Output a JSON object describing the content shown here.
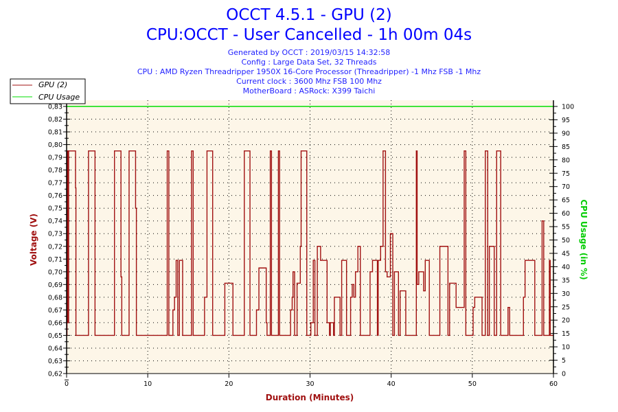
{
  "header": {
    "title": "OCCT 4.5.1 - GPU (2)",
    "subtitle": "CPU:OCCT - User Cancelled - 1h 00m 04s",
    "info": [
      "Generated by OCCT : 2019/03/15 14:32:58",
      "Config : Large Data Set, 32 Threads",
      "CPU : AMD Ryzen Threadripper 1950X 16-Core Processor (Threadripper) -1 Mhz FSB -1 Mhz",
      "Current clock : 3600 Mhz FSB 100 Mhz",
      "MotherBoard : ASRock: X399 Taichi"
    ]
  },
  "chart_data": {
    "type": "line",
    "xlabel": "Duration (Minutes)",
    "ylabel": "Voltage (V)",
    "y2label": "CPU Usage (in %)",
    "xlim": [
      0,
      60
    ],
    "ylim": [
      0.62,
      0.83
    ],
    "y2lim": [
      0,
      100
    ],
    "x_ticks": [
      "0",
      "10",
      "20",
      "30",
      "40",
      "50",
      "60"
    ],
    "y_ticks": [
      "0,62",
      "0,63",
      "0,64",
      "0,65",
      "0,66",
      "0,67",
      "0,68",
      "0,69",
      "0,70",
      "0,71",
      "0,72",
      "0,73",
      "0,74",
      "0,75",
      "0,76",
      "0,77",
      "0,78",
      "0,79",
      "0,80",
      "0,81",
      "0,82",
      "0,83"
    ],
    "y2_ticks": [
      "0",
      "5",
      "10",
      "15",
      "20",
      "25",
      "30",
      "35",
      "40",
      "45",
      "50",
      "55",
      "60",
      "65",
      "70",
      "75",
      "80",
      "85",
      "90",
      "95",
      "100"
    ],
    "grid": true,
    "legend": "top-left",
    "colors": {
      "gpu": "#a01010",
      "cpu": "#00dd00",
      "plot_bg": "#fdf6e8",
      "title": "#0000ff",
      "ylabel": "#a01010",
      "y2label": "#00cc00"
    },
    "series": [
      {
        "name": "GPU (2)",
        "axis": "left",
        "step": true,
        "points": [
          [
            0,
            0.65
          ],
          [
            0.05,
            0.795
          ],
          [
            0.15,
            0.66
          ],
          [
            0.25,
            0.795
          ],
          [
            1.1,
            0.766
          ],
          [
            1.15,
            0.65
          ],
          [
            2.7,
            0.795
          ],
          [
            3.5,
            0.65
          ],
          [
            5.9,
            0.795
          ],
          [
            6.7,
            0.696
          ],
          [
            6.8,
            0.65
          ],
          [
            7.7,
            0.795
          ],
          [
            8.5,
            0.75
          ],
          [
            8.6,
            0.65
          ],
          [
            12.4,
            0.795
          ],
          [
            12.6,
            0.65
          ],
          [
            13.1,
            0.67
          ],
          [
            13.3,
            0.68
          ],
          [
            13.5,
            0.709
          ],
          [
            13.7,
            0.65
          ],
          [
            13.9,
            0.709
          ],
          [
            14.3,
            0.65
          ],
          [
            15.4,
            0.795
          ],
          [
            15.6,
            0.65
          ],
          [
            17,
            0.68
          ],
          [
            17.3,
            0.795
          ],
          [
            18,
            0.65
          ],
          [
            19.5,
            0.691
          ],
          [
            20.5,
            0.65
          ],
          [
            21.9,
            0.795
          ],
          [
            22.6,
            0.65
          ],
          [
            23.4,
            0.67
          ],
          [
            23.7,
            0.703
          ],
          [
            24.6,
            0.66
          ],
          [
            24.7,
            0.65
          ],
          [
            25.1,
            0.795
          ],
          [
            25.25,
            0.65
          ],
          [
            26.1,
            0.795
          ],
          [
            26.25,
            0.65
          ],
          [
            27.6,
            0.67
          ],
          [
            27.8,
            0.68
          ],
          [
            27.9,
            0.7
          ],
          [
            28.1,
            0.65
          ],
          [
            28.4,
            0.691
          ],
          [
            28.8,
            0.72
          ],
          [
            28.9,
            0.795
          ],
          [
            29.6,
            0.65
          ],
          [
            30.1,
            0.66
          ],
          [
            30.4,
            0.709
          ],
          [
            30.6,
            0.65
          ],
          [
            30.9,
            0.72
          ],
          [
            31.3,
            0.709
          ],
          [
            32.1,
            0.66
          ],
          [
            32.4,
            0.65
          ],
          [
            32.5,
            0.66
          ],
          [
            32.9,
            0.65
          ],
          [
            33,
            0.68
          ],
          [
            33.7,
            0.65
          ],
          [
            33.9,
            0.709
          ],
          [
            34.5,
            0.65
          ],
          [
            35,
            0.68
          ],
          [
            35.2,
            0.69
          ],
          [
            35.4,
            0.68
          ],
          [
            35.6,
            0.7
          ],
          [
            35.9,
            0.72
          ],
          [
            36.2,
            0.65
          ],
          [
            37.4,
            0.7
          ],
          [
            37.7,
            0.709
          ],
          [
            38.3,
            0.65
          ],
          [
            38.4,
            0.709
          ],
          [
            38.7,
            0.72
          ],
          [
            39,
            0.795
          ],
          [
            39.3,
            0.7
          ],
          [
            39.5,
            0.696
          ],
          [
            39.9,
            0.73
          ],
          [
            40.2,
            0.65
          ],
          [
            40.4,
            0.7
          ],
          [
            40.9,
            0.65
          ],
          [
            41.1,
            0.685
          ],
          [
            41.8,
            0.65
          ],
          [
            43.1,
            0.795
          ],
          [
            43.2,
            0.69
          ],
          [
            43.4,
            0.7
          ],
          [
            44,
            0.685
          ],
          [
            44.2,
            0.709
          ],
          [
            44.7,
            0.65
          ],
          [
            46,
            0.72
          ],
          [
            47,
            0.65
          ],
          [
            47.2,
            0.691
          ],
          [
            48,
            0.672
          ],
          [
            49,
            0.795
          ],
          [
            49.2,
            0.65
          ],
          [
            50.1,
            0.672
          ],
          [
            50.3,
            0.68
          ],
          [
            51.2,
            0.65
          ],
          [
            51.6,
            0.795
          ],
          [
            51.9,
            0.65
          ],
          [
            52.1,
            0.72
          ],
          [
            52.7,
            0.65
          ],
          [
            53,
            0.795
          ],
          [
            53.5,
            0.65
          ],
          [
            54.4,
            0.672
          ],
          [
            54.6,
            0.65
          ],
          [
            56.3,
            0.68
          ],
          [
            56.5,
            0.709
          ],
          [
            57.7,
            0.65
          ],
          [
            58.6,
            0.74
          ],
          [
            58.8,
            0.65
          ],
          [
            59.5,
            0.709
          ],
          [
            59.6,
            0.65
          ],
          [
            60,
            0.65
          ]
        ]
      },
      {
        "name": "CPU Usage",
        "axis": "right",
        "points": [
          [
            0,
            100
          ],
          [
            60,
            100
          ]
        ]
      }
    ]
  }
}
